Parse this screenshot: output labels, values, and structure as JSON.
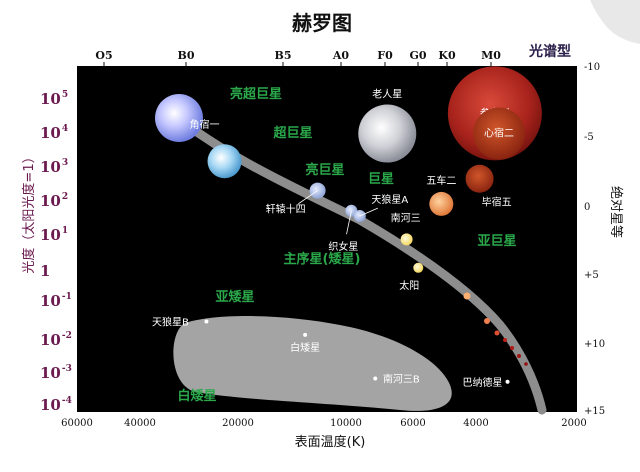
{
  "chart_data": {
    "type": "scatter",
    "title": "赫罗图",
    "spectral_label": "光谱型",
    "spectral_classes": [
      "O5",
      "B0",
      "B5",
      "A0",
      "F0",
      "G0",
      "K0",
      "M0"
    ],
    "xlabel": "表面温度(K)",
    "x_ticks": [
      "60000",
      "40000",
      "20000",
      "10000",
      "6000",
      "4000",
      "2000"
    ],
    "ylabel_left": "光度（太阳光度=1）",
    "y_ticks_left": [
      {
        "base": "10",
        "exp": "5"
      },
      {
        "base": "10",
        "exp": "4"
      },
      {
        "base": "10",
        "exp": "3"
      },
      {
        "base": "10",
        "exp": "2"
      },
      {
        "base": "10",
        "exp": "1"
      },
      {
        "base": "1",
        "exp": ""
      },
      {
        "base": "10",
        "exp": "-1"
      },
      {
        "base": "10",
        "exp": "-2"
      },
      {
        "base": "10",
        "exp": "-3"
      },
      {
        "base": "10",
        "exp": "-4"
      }
    ],
    "ylabel_right": "绝对星等",
    "y_ticks_right": [
      "-10",
      "-5",
      "0",
      "+5",
      "+10",
      "+15"
    ],
    "regions": [
      "亮超巨星",
      "超巨星",
      "亮巨星",
      "巨星",
      "亚巨星",
      "主序星(矮星)",
      "亚矮星",
      "白矮星"
    ],
    "stars": [
      {
        "name": "角宿一",
        "temperature_k": 22000,
        "luminosity": 1500
      },
      {
        "name": "轩辕十四",
        "temperature_k": 12000,
        "luminosity": 200
      },
      {
        "name": "织女星",
        "temperature_k": 9600,
        "luminosity": 50
      },
      {
        "name": "天狼星A",
        "temperature_k": 9000,
        "luminosity": 35
      },
      {
        "name": "老人星",
        "temperature_k": 7300,
        "luminosity": 10000
      },
      {
        "name": "南河三",
        "temperature_k": 6300,
        "luminosity": 7
      },
      {
        "name": "五车二",
        "temperature_k": 5000,
        "luminosity": 80
      },
      {
        "name": "太阳",
        "temperature_k": 5800,
        "luminosity": 1
      },
      {
        "name": "参宿四",
        "temperature_k": 3500,
        "luminosity": 40000
      },
      {
        "name": "心宿二",
        "temperature_k": 3400,
        "luminosity": 10000
      },
      {
        "name": "毕宿五",
        "temperature_k": 3900,
        "luminosity": 450
      },
      {
        "name": "天狼星B",
        "temperature_k": 25000,
        "luminosity": 0.025
      },
      {
        "name": "白矮星",
        "temperature_k": 13000,
        "luminosity": 0.01
      },
      {
        "name": "南河三B",
        "temperature_k": 8000,
        "luminosity": 0.0005
      },
      {
        "name": "巴纳德星",
        "temperature_k": 3200,
        "luminosity": 0.0004
      }
    ]
  }
}
